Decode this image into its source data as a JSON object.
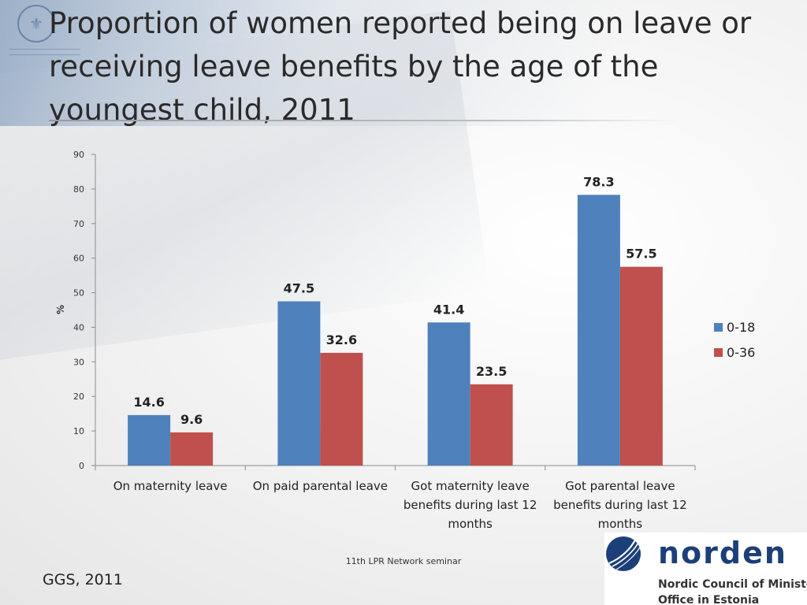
{
  "slide": {
    "title": "Proportion of women reported being on leave or receiving leave benefits by the age of the youngest child, 2011",
    "footer_center": "11th LPR Network seminar",
    "footer_left": "GGS, 2011",
    "logo": {
      "word": "norden",
      "line1": "Nordic Council of Ministers’",
      "line2": "Office in Estonia"
    },
    "colors": {
      "series1": "#4f81bd",
      "series2": "#c0504d",
      "text": "#222222"
    }
  },
  "chart_data": {
    "type": "bar",
    "title": "",
    "xlabel": "",
    "ylabel": "%",
    "ylim": [
      0,
      90
    ],
    "yticks": [
      "0",
      "10",
      "20",
      "30",
      "40",
      "50",
      "60",
      "70",
      "80",
      "90"
    ],
    "categories": [
      [
        "On maternity leave"
      ],
      [
        "On paid parental leave"
      ],
      [
        "Got maternity leave",
        "benefits during last 12",
        "months"
      ],
      [
        "Got parental leave",
        "benefits during last 12",
        "months"
      ]
    ],
    "series": [
      {
        "name": "0-18",
        "values": [
          14.6,
          47.5,
          41.4,
          78.3
        ],
        "labels": [
          "14.6",
          "47.5",
          "41.4",
          "78.3"
        ],
        "color": "#4f81bd"
      },
      {
        "name": "0-36",
        "values": [
          9.6,
          32.6,
          23.5,
          57.5
        ],
        "labels": [
          "9.6",
          "32.6",
          "23.5",
          "57.5"
        ],
        "color": "#c0504d"
      }
    ],
    "legend": "right"
  }
}
